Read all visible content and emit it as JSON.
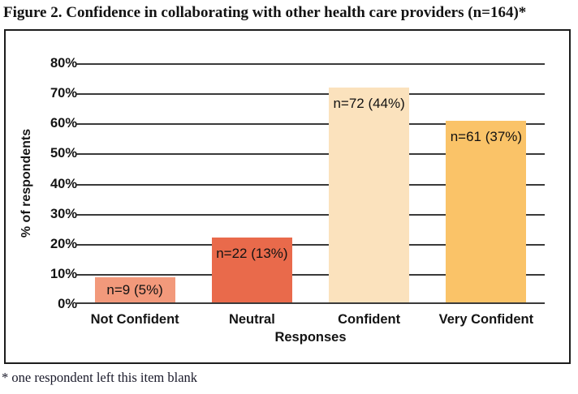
{
  "title": "Figure 2. Confidence in collaborating with other health care providers (n=164)*",
  "footnote": "* one respondent left this item blank",
  "chart_data": {
    "type": "bar",
    "title": "Figure 2. Confidence in collaborating with other health care providers (n=164)*",
    "categories": [
      "Not Confident",
      "Neutral",
      "Confident",
      "Very Confident"
    ],
    "values": [
      9,
      22,
      72,
      61
    ],
    "percents": [
      5,
      13,
      44,
      37
    ],
    "bar_labels": [
      "n=9 (5%)",
      "n=22 (13%)",
      "n=72 (44%)",
      "n=61 (37%)"
    ],
    "xlabel": "Responses",
    "ylabel": "% of respondents",
    "ylim": [
      0,
      80
    ],
    "yticks": [
      0,
      10,
      20,
      30,
      40,
      50,
      60,
      70,
      80
    ],
    "ytick_labels": [
      "0%",
      "10%",
      "20%",
      "30%",
      "40%",
      "50%",
      "60%",
      "70%",
      "80%"
    ],
    "grid": true,
    "legend": false,
    "note": "bar heights are plotted as respondent counts on the percent axis",
    "bar_colors": [
      "#F2997B",
      "#E96A4B",
      "#FBE2BD",
      "#FAC368"
    ],
    "gridline_color": "#3a3a3a",
    "frame_color": "#1c1c1c"
  }
}
